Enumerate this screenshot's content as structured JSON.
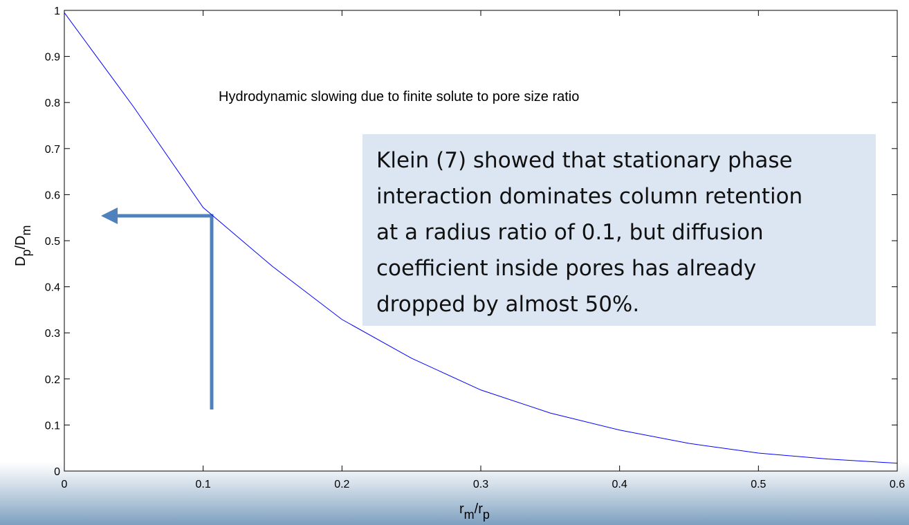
{
  "chart_data": {
    "type": "line",
    "annotation": "Hydrodynamic slowing due to finite solute to pore size ratio",
    "note_lines": [
      "Klein (7) showed that stationary phase",
      "interaction dominates column retention",
      "at a radius ratio of 0.1, but diffusion",
      "coefficient inside pores has already",
      "dropped by almost 50%."
    ],
    "xlabel": [
      "r",
      "m",
      "/r",
      "p"
    ],
    "ylabel": [
      "D",
      "p",
      "/D",
      "m"
    ],
    "x": [
      0,
      0.05,
      0.1,
      0.15,
      0.2,
      0.25,
      0.3,
      0.35,
      0.4,
      0.45,
      0.5,
      0.55,
      0.6
    ],
    "series": [
      {
        "color": "#0000ff",
        "values": [
          0.995,
          0.79,
          0.572,
          0.444,
          0.329,
          0.245,
          0.176,
          0.126,
          0.089,
          0.06,
          0.039,
          0.026,
          0.017
        ]
      }
    ],
    "xlim": [
      0,
      0.6
    ],
    "ylim": [
      0,
      1
    ],
    "xticks": [
      0,
      0.1,
      0.2,
      0.3,
      0.4,
      0.5,
      0.6
    ],
    "yticks": [
      0,
      0.1,
      0.2,
      0.3,
      0.4,
      0.5,
      0.6,
      0.7,
      0.8,
      0.9,
      1
    ]
  }
}
